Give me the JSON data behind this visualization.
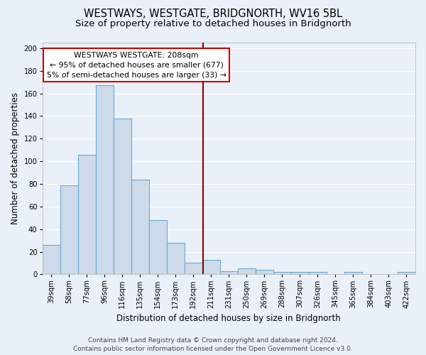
{
  "title": "WESTWAYS, WESTGATE, BRIDGNORTH, WV16 5BL",
  "subtitle": "Size of property relative to detached houses in Bridgnorth",
  "xlabel": "Distribution of detached houses by size in Bridgnorth",
  "ylabel": "Number of detached properties",
  "bar_values": [
    26,
    79,
    106,
    167,
    138,
    84,
    48,
    28,
    10,
    13,
    3,
    5,
    4,
    2,
    2,
    2,
    0,
    2,
    0,
    0,
    2
  ],
  "bin_labels": [
    "39sqm",
    "58sqm",
    "77sqm",
    "96sqm",
    "116sqm",
    "135sqm",
    "154sqm",
    "173sqm",
    "192sqm",
    "211sqm",
    "231sqm",
    "250sqm",
    "269sqm",
    "288sqm",
    "307sqm",
    "326sqm",
    "345sqm",
    "365sqm",
    "384sqm",
    "403sqm",
    "422sqm"
  ],
  "bar_color": "#ccdaea",
  "bar_edge_color": "#6aaad4",
  "background_color": "#eaf0f8",
  "grid_color": "#ffffff",
  "annotation_text": "  WESTWAYS WESTGATE: 208sqm  \n← 95% of detached houses are smaller (677)\n5% of semi-detached houses are larger (33) →",
  "annotation_box_edge": "#cc0000",
  "vline_color": "#8b0000",
  "vline_x": 8.55,
  "footer_text": "Contains HM Land Registry data © Crown copyright and database right 2024.\nContains public sector information licensed under the Open Government Licence v3.0.",
  "ylim": [
    0,
    205
  ],
  "yticks": [
    0,
    20,
    40,
    60,
    80,
    100,
    120,
    140,
    160,
    180,
    200
  ],
  "title_fontsize": 10.5,
  "subtitle_fontsize": 9.5,
  "axis_label_fontsize": 8.5,
  "tick_fontsize": 7.2,
  "annotation_fontsize": 7.8,
  "footer_fontsize": 6.5
}
